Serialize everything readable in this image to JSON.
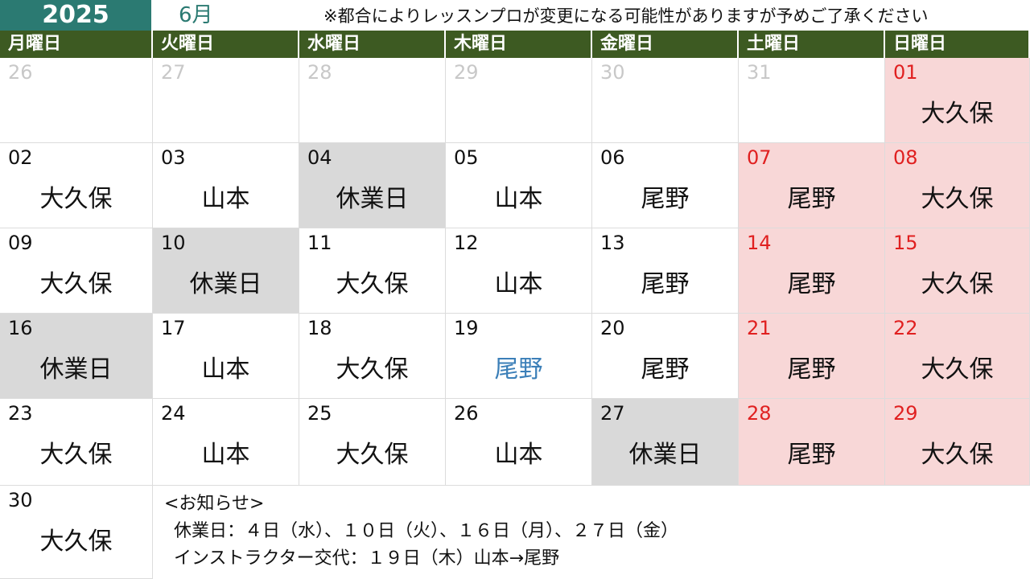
{
  "header": {
    "year": "2025",
    "month": "6月",
    "notice": "※都合によりレッスンプロが変更になる可能性がありますが予めご了承ください"
  },
  "weekdays": [
    "月曜日",
    "火曜日",
    "水曜日",
    "木曜日",
    "金曜日",
    "土曜日",
    "日曜日"
  ],
  "weeks": [
    [
      {
        "day": "26",
        "text": "",
        "style": "faded"
      },
      {
        "day": "27",
        "text": "",
        "style": "faded"
      },
      {
        "day": "28",
        "text": "",
        "style": "faded"
      },
      {
        "day": "29",
        "text": "",
        "style": "faded"
      },
      {
        "day": "30",
        "text": "",
        "style": "faded"
      },
      {
        "day": "31",
        "text": "",
        "style": "faded"
      },
      {
        "day": "01",
        "text": "大久保",
        "style": "weekend"
      }
    ],
    [
      {
        "day": "02",
        "text": "大久保",
        "style": ""
      },
      {
        "day": "03",
        "text": "山本",
        "style": ""
      },
      {
        "day": "04",
        "text": "休業日",
        "style": "closed"
      },
      {
        "day": "05",
        "text": "山本",
        "style": ""
      },
      {
        "day": "06",
        "text": "尾野",
        "style": ""
      },
      {
        "day": "07",
        "text": "尾野",
        "style": "weekend"
      },
      {
        "day": "08",
        "text": "大久保",
        "style": "weekend"
      }
    ],
    [
      {
        "day": "09",
        "text": "大久保",
        "style": ""
      },
      {
        "day": "10",
        "text": "休業日",
        "style": "closed"
      },
      {
        "day": "11",
        "text": "大久保",
        "style": ""
      },
      {
        "day": "12",
        "text": "山本",
        "style": ""
      },
      {
        "day": "13",
        "text": "尾野",
        "style": ""
      },
      {
        "day": "14",
        "text": "尾野",
        "style": "weekend"
      },
      {
        "day": "15",
        "text": "大久保",
        "style": "weekend"
      }
    ],
    [
      {
        "day": "16",
        "text": "休業日",
        "style": "closed"
      },
      {
        "day": "17",
        "text": "山本",
        "style": ""
      },
      {
        "day": "18",
        "text": "大久保",
        "style": ""
      },
      {
        "day": "19",
        "text": "尾野",
        "style": "changed"
      },
      {
        "day": "20",
        "text": "尾野",
        "style": ""
      },
      {
        "day": "21",
        "text": "尾野",
        "style": "weekend"
      },
      {
        "day": "22",
        "text": "大久保",
        "style": "weekend"
      }
    ],
    [
      {
        "day": "23",
        "text": "大久保",
        "style": ""
      },
      {
        "day": "24",
        "text": "山本",
        "style": ""
      },
      {
        "day": "25",
        "text": "大久保",
        "style": ""
      },
      {
        "day": "26",
        "text": "山本",
        "style": ""
      },
      {
        "day": "27",
        "text": "休業日",
        "style": "closed"
      },
      {
        "day": "28",
        "text": "尾野",
        "style": "weekend"
      },
      {
        "day": "29",
        "text": "大久保",
        "style": "weekend"
      }
    ],
    [
      {
        "day": "30",
        "text": "大久保",
        "style": ""
      }
    ]
  ],
  "announcements": {
    "heading": "<お知らせ>",
    "closed_days": "休業日：４日（水）、１０日（火）、１６日（月）、２７日（金）",
    "instructor_change": "インストラクター交代：１９日（木）山本→尾野"
  },
  "colors": {
    "year_bg": "#2b7a72",
    "weekday_bg": "#3d5a22",
    "closed_bg": "#d9d9d9",
    "weekend_bg": "#f8d7d7",
    "weekend_day_text": "#e02020",
    "changed_text": "#3b7fb8"
  }
}
